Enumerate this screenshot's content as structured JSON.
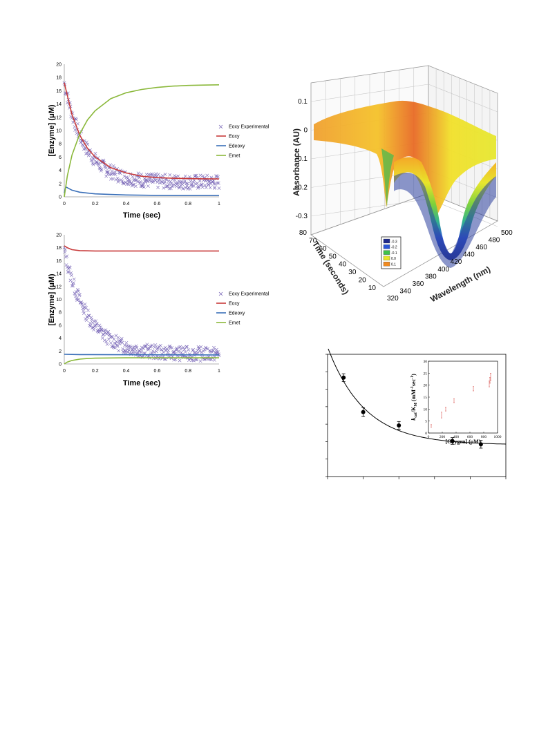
{
  "charts": {
    "top_left": {
      "chart_data": {
        "type": "scatter",
        "xlabel": "Time (sec)",
        "ylabel": "[Enzyme] (μM)",
        "xlim": [
          0,
          1
        ],
        "ylim": [
          0,
          20
        ],
        "xticks": [
          "0",
          "0.2",
          "0.4",
          "0.6",
          "0.8",
          "1"
        ],
        "yticks": [
          "0",
          "2",
          "4",
          "6",
          "8",
          "10",
          "12",
          "14",
          "16",
          "18",
          "20"
        ],
        "legend_position": "right",
        "series": [
          {
            "name": "Eoxy Experimental",
            "kind": "markers",
            "color": "#7a68b8",
            "model": {
              "a": 15,
              "k": 7.5,
              "c": 2.2
            },
            "noise": 1.1,
            "count": 300
          },
          {
            "name": "Eoxy",
            "kind": "line",
            "color": "#c83a3a",
            "x": [
              0,
              0.05,
              0.1,
              0.15,
              0.2,
              0.3,
              0.4,
              0.5,
              0.6,
              0.7,
              0.8,
              0.9,
              1.0
            ],
            "y": [
              17.2,
              12.4,
              9.3,
              7.3,
              6.0,
              4.4,
              3.6,
              3.1,
              2.9,
              2.8,
              2.75,
              2.72,
              2.7
            ]
          },
          {
            "name": "Edeoxy",
            "kind": "line",
            "color": "#3a6fb8",
            "x": [
              0,
              0.01,
              0.05,
              0.1,
              0.2,
              0.3,
              0.4,
              0.6,
              0.8,
              1.0
            ],
            "y": [
              0.6,
              1.5,
              1.0,
              0.7,
              0.45,
              0.35,
              0.28,
              0.22,
              0.2,
              0.2
            ]
          },
          {
            "name": "Emet",
            "kind": "line",
            "color": "#8ab83a",
            "x": [
              0,
              0.02,
              0.05,
              0.1,
              0.15,
              0.2,
              0.3,
              0.4,
              0.5,
              0.6,
              0.7,
              0.8,
              0.9,
              1.0
            ],
            "y": [
              0,
              3.2,
              6.3,
              9.5,
              11.6,
              13.0,
              14.8,
              15.7,
              16.2,
              16.5,
              16.7,
              16.8,
              16.85,
              16.9
            ]
          }
        ]
      }
    },
    "bottom_left": {
      "chart_data": {
        "type": "scatter",
        "xlabel": "Time (sec)",
        "ylabel": "[Enzyme] (μM)",
        "xlim": [
          0,
          1
        ],
        "ylim": [
          0,
          20
        ],
        "xticks": [
          "0",
          "0.2",
          "0.4",
          "0.6",
          "0.8",
          "1"
        ],
        "yticks": [
          "0",
          "2",
          "4",
          "6",
          "8",
          "10",
          "12",
          "14",
          "16",
          "18",
          "20"
        ],
        "legend_position": "right",
        "series": [
          {
            "name": "Eoxy Experimental",
            "kind": "markers",
            "color": "#7a68b8",
            "model": {
              "a": 16,
              "k": 6.5,
              "c": 1.5
            },
            "noise": 1.1,
            "count": 300
          },
          {
            "name": "Eoxy",
            "kind": "line",
            "color": "#c83a3a",
            "x": [
              0,
              0.02,
              0.05,
              0.1,
              0.2,
              0.4,
              0.6,
              0.8,
              1.0
            ],
            "y": [
              18.3,
              18.0,
              17.7,
              17.55,
              17.5,
              17.5,
              17.5,
              17.5,
              17.5
            ]
          },
          {
            "name": "Edeoxy",
            "kind": "line",
            "color": "#3a6fb8",
            "x": [
              0,
              0.1,
              0.5,
              1.0
            ],
            "y": [
              1.5,
              1.45,
              1.42,
              1.4
            ]
          },
          {
            "name": "Emet",
            "kind": "line",
            "color": "#8ab83a",
            "x": [
              0,
              0.02,
              0.05,
              0.1,
              0.15,
              0.2,
              0.3,
              0.4,
              0.6,
              0.8,
              1.0
            ],
            "y": [
              0,
              0.3,
              0.55,
              0.75,
              0.85,
              0.9,
              0.93,
              0.95,
              0.95,
              0.95,
              0.95
            ]
          }
        ]
      }
    },
    "surface_3d": {
      "chart_data": {
        "type": "area",
        "zlabel": "Absorbance (AU)",
        "ylabel": "Time (seconds)",
        "xlabel": "Wavelength (nm)",
        "zticks": [
          "0.1",
          "0",
          "-0.1",
          "-0.2",
          "-0.3"
        ],
        "timeticks": [
          "80",
          "70",
          "60",
          "50",
          "40",
          "30",
          "20",
          "10"
        ],
        "wavelengthticks": [
          "320",
          "340",
          "360",
          "380",
          "400",
          "420",
          "440",
          "460",
          "480",
          "500"
        ],
        "xlim": [
          320,
          500
        ],
        "ylim": [
          0,
          80
        ],
        "zlim": [
          -0.35,
          0.15
        ],
        "legend_position": "lower-left",
        "legend": [
          {
            "label": "-0.3",
            "color": "#1f2a8c"
          },
          {
            "label": "-0.2",
            "color": "#2a55d6"
          },
          {
            "label": "-0.1",
            "color": "#3fc24a"
          },
          {
            "label": "0.0",
            "color": "#e8e62a"
          },
          {
            "label": "0.1",
            "color": "#f08a20"
          }
        ]
      }
    },
    "bottom_right": {
      "chart_data": {
        "type": "scatter",
        "main": {
          "x": [
            90,
            200,
            400,
            700,
            860
          ],
          "y": [
            0.79,
            0.48,
            0.36,
            0.22,
            0.19
          ],
          "err": [
            0.035,
            0.04,
            0.035,
            0.03,
            0.035
          ],
          "curve": {
            "a": 0.88,
            "k": 0.0048,
            "c": 0.185
          },
          "xlim": [
            0,
            1000
          ],
          "ylim": [
            -0.1,
            1.0
          ],
          "xtick_count": 5,
          "ytick_count": 7
        },
        "inset": {
          "xlabel": "[Oxygen] (μM)",
          "ylabel_k": "k",
          "ylabel_cat": "cat",
          "ylabel_mid": "/K",
          "ylabel_M": "M",
          "ylabel_units": " (mM",
          "ylabel_exp1": "-1",
          "ylabel_sec": "sec",
          "ylabel_exp2": "-1",
          "ylabel_close": ")",
          "xticks": [
            "0",
            "200",
            "400",
            "600",
            "800",
            "1000"
          ],
          "yticks": [
            "0",
            "5",
            "10",
            "15",
            "20",
            "25",
            "30"
          ],
          "xlim": [
            0,
            1000
          ],
          "ylim": [
            0,
            30
          ],
          "x": [
            40,
            190,
            250,
            370,
            650,
            880,
            890,
            900
          ],
          "y": [
            3,
            7.5,
            10,
            13.5,
            18.5,
            20.5,
            22,
            23.5
          ],
          "err": [
            0.5,
            1.2,
            0.8,
            0.8,
            0.9,
            1.2,
            1.2,
            1.5
          ],
          "marker_color": "#d9534f"
        }
      }
    }
  }
}
